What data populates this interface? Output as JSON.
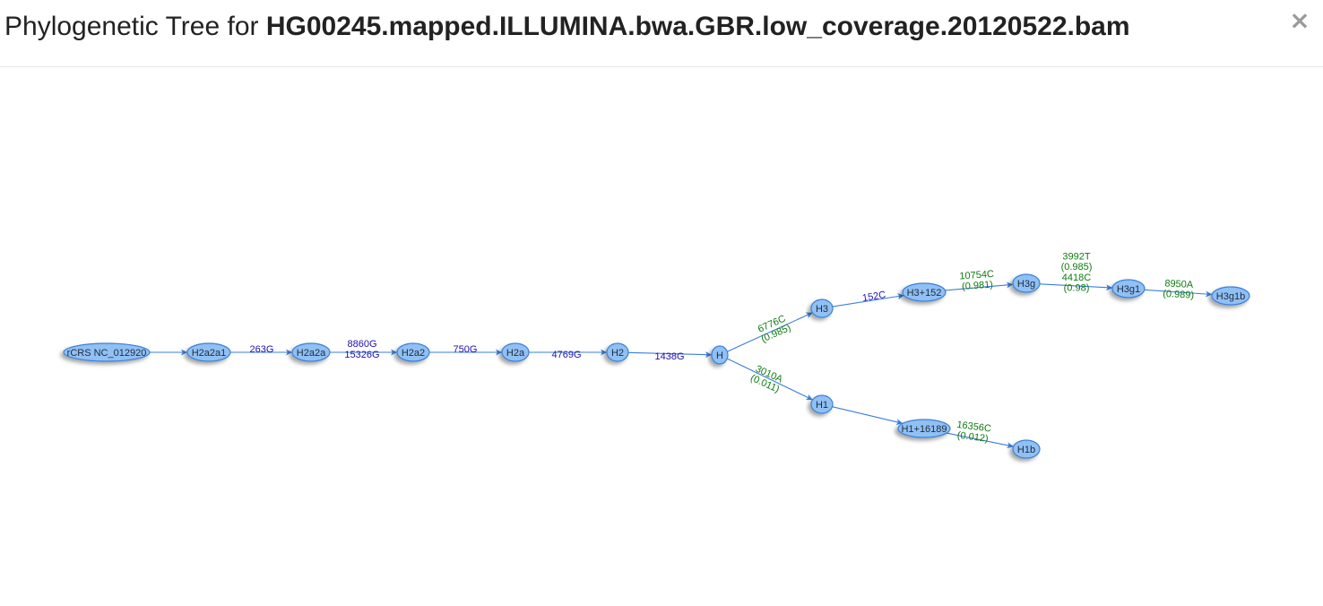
{
  "header": {
    "title_prefix": "Phylogenetic Tree for ",
    "title_file": "HG00245.mapped.ILLUMINA.bwa.GBR.low_coverage.20120522.bam",
    "close_label": "×"
  },
  "colors": {
    "node_fill": "#90c0f4",
    "node_stroke": "#3b7fd9",
    "edge": "#3b7fd9",
    "label_blue": "#1f10b0",
    "label_green": "#0f7a0f"
  },
  "tree": {
    "nodes": [
      {
        "id": "rcrs",
        "label": "rCRS NC_012920"
      },
      {
        "id": "h2a2a1",
        "label": "H2a2a1"
      },
      {
        "id": "h2a2a",
        "label": "H2a2a"
      },
      {
        "id": "h2a2",
        "label": "H2a2"
      },
      {
        "id": "h2a",
        "label": "H2a"
      },
      {
        "id": "h2",
        "label": "H2"
      },
      {
        "id": "h",
        "label": "H"
      },
      {
        "id": "h3",
        "label": "H3"
      },
      {
        "id": "h3_152",
        "label": "H3+152"
      },
      {
        "id": "h3g",
        "label": "H3g"
      },
      {
        "id": "h3g1",
        "label": "H3g1"
      },
      {
        "id": "h3g1b",
        "label": "H3g1b"
      },
      {
        "id": "h1",
        "label": "H1"
      },
      {
        "id": "h1_16189",
        "label": "H1+16189"
      },
      {
        "id": "h1b",
        "label": "H1b"
      }
    ],
    "edges": [
      {
        "from": "rcrs",
        "to": "h2a2a1",
        "lines": [],
        "color": "blue"
      },
      {
        "from": "h2a2a1",
        "to": "h2a2a",
        "lines": [
          "263G"
        ],
        "color": "blue"
      },
      {
        "from": "h2a2a",
        "to": "h2a2",
        "lines": [
          "8860G",
          "15326G"
        ],
        "color": "blue"
      },
      {
        "from": "h2a2",
        "to": "h2a",
        "lines": [
          "750G"
        ],
        "color": "blue"
      },
      {
        "from": "h2a",
        "to": "h2",
        "lines": [
          "4769G"
        ],
        "color": "blue"
      },
      {
        "from": "h2",
        "to": "h",
        "lines": [
          "1438G"
        ],
        "color": "blue"
      },
      {
        "from": "h",
        "to": "h3",
        "lines": [
          "6776C",
          "(0.985)"
        ],
        "color": "green"
      },
      {
        "from": "h3",
        "to": "h3_152",
        "lines": [
          "152C"
        ],
        "color": "blue"
      },
      {
        "from": "h3_152",
        "to": "h3g",
        "lines": [
          "10754C",
          "(0.981)"
        ],
        "color": "green"
      },
      {
        "from": "h3g",
        "to": "h3g1",
        "lines": [
          "3992T",
          "(0.985)",
          "4418C",
          "(0.98)"
        ],
        "color": "green"
      },
      {
        "from": "h3g1",
        "to": "h3g1b",
        "lines": [
          "8950A",
          "(0.989)"
        ],
        "color": "green"
      },
      {
        "from": "h",
        "to": "h1",
        "lines": [
          "3010A",
          "(0.011)"
        ],
        "color": "green"
      },
      {
        "from": "h1",
        "to": "h1_16189",
        "lines": [],
        "color": "blue"
      },
      {
        "from": "h1_16189",
        "to": "h1b",
        "lines": [
          "16356C",
          "(0.012)"
        ],
        "color": "green"
      }
    ]
  }
}
